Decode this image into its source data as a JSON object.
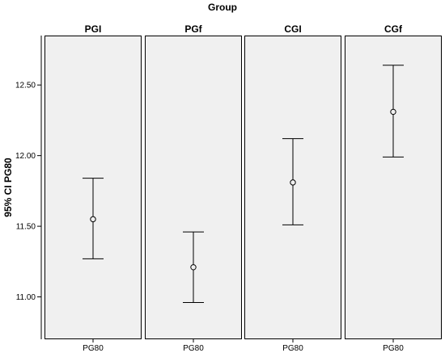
{
  "chart_data": {
    "type": "errorbar",
    "title": "Group",
    "ylabel": "95% CI PG80",
    "ylim": [
      10.7,
      12.85
    ],
    "yticks": [
      11.0,
      11.5,
      12.0,
      12.5
    ],
    "ytick_labels": [
      "11.00",
      "11.50",
      "12.00",
      "12.50"
    ],
    "grid": false,
    "panels": [
      {
        "label": "PGI",
        "x_category": "PG80",
        "mean": 11.55,
        "lower": 11.27,
        "upper": 11.84
      },
      {
        "label": "PGf",
        "x_category": "PG80",
        "mean": 11.21,
        "lower": 10.96,
        "upper": 11.46
      },
      {
        "label": "CGI",
        "x_category": "PG80",
        "mean": 11.81,
        "lower": 11.51,
        "upper": 12.12
      },
      {
        "label": "CGf",
        "x_category": "PG80",
        "mean": 12.31,
        "lower": 11.99,
        "upper": 12.64
      }
    ],
    "colors": {
      "panel_fill": "#f0f0f0",
      "frame": "#000000",
      "marks": "#000000"
    }
  }
}
